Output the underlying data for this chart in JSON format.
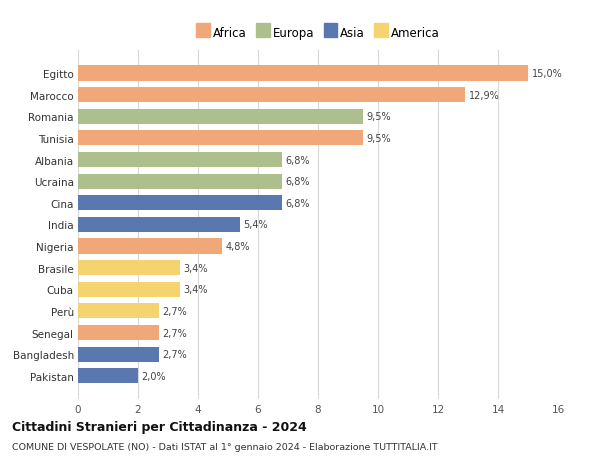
{
  "countries": [
    "Egitto",
    "Marocco",
    "Romania",
    "Tunisia",
    "Albania",
    "Ucraina",
    "Cina",
    "India",
    "Nigeria",
    "Brasile",
    "Cuba",
    "Perù",
    "Senegal",
    "Bangladesh",
    "Pakistan"
  ],
  "values": [
    15.0,
    12.9,
    9.5,
    9.5,
    6.8,
    6.8,
    6.8,
    5.4,
    4.8,
    3.4,
    3.4,
    2.7,
    2.7,
    2.7,
    2.0
  ],
  "continents": [
    "Africa",
    "Africa",
    "Europa",
    "Africa",
    "Europa",
    "Europa",
    "Asia",
    "Asia",
    "Africa",
    "America",
    "America",
    "America",
    "Africa",
    "Asia",
    "Asia"
  ],
  "colors": {
    "Africa": "#F0A878",
    "Europa": "#ADBF8C",
    "Asia": "#5A78B0",
    "America": "#F5D470"
  },
  "bar_colors": [
    "#F0A878",
    "#F0A878",
    "#ADBF8C",
    "#F0A878",
    "#ADBF8C",
    "#ADBF8C",
    "#5A78B0",
    "#5A78B0",
    "#F0A878",
    "#F5D470",
    "#F5D470",
    "#F5D470",
    "#F0A878",
    "#5A78B0",
    "#5A78B0"
  ],
  "labels": [
    "15,0%",
    "12,9%",
    "9,5%",
    "9,5%",
    "6,8%",
    "6,8%",
    "6,8%",
    "5,4%",
    "4,8%",
    "3,4%",
    "3,4%",
    "2,7%",
    "2,7%",
    "2,7%",
    "2,0%"
  ],
  "xlim": [
    0,
    16
  ],
  "xticks": [
    0,
    2,
    4,
    6,
    8,
    10,
    12,
    14,
    16
  ],
  "title": "Cittadini Stranieri per Cittadinanza - 2024",
  "subtitle": "COMUNE DI VESPOLATE (NO) - Dati ISTAT al 1° gennaio 2024 - Elaborazione TUTTITALIA.IT",
  "legend_order": [
    "Africa",
    "Europa",
    "Asia",
    "America"
  ],
  "bg_color": "#ffffff",
  "grid_color": "#d8d8d8",
  "bar_height": 0.7
}
